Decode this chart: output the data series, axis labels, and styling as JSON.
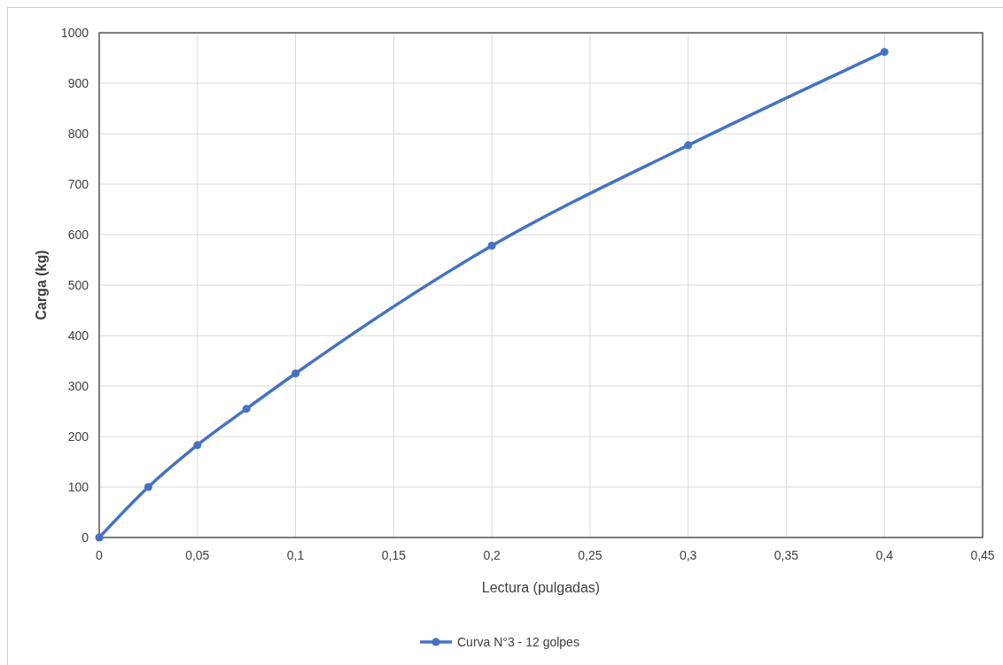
{
  "chart_data": {
    "type": "line",
    "xlabel": "Lectura (pulgadas)",
    "ylabel": "Carga (kg)",
    "x": [
      0,
      0.025,
      0.05,
      0.075,
      0.1,
      0.2,
      0.3,
      0.4
    ],
    "series": [
      {
        "name": "Curva N°3 - 12 golpes",
        "color": "#4472c4",
        "values": [
          0,
          100,
          183,
          255,
          325,
          578,
          777,
          962
        ]
      }
    ],
    "xlim": [
      0,
      0.45
    ],
    "ylim": [
      0,
      1000
    ],
    "xticks": [
      0,
      {
        "value": 0.05,
        "label": "0,05"
      },
      {
        "value": 0.1,
        "label": "0,1"
      },
      {
        "value": 0.15,
        "label": "0,15"
      },
      {
        "value": 0.2,
        "label": "0,2"
      },
      {
        "value": 0.25,
        "label": "0,25"
      },
      {
        "value": 0.3,
        "label": "0,3"
      },
      {
        "value": 0.35,
        "label": "0,35"
      },
      {
        "value": 0.4,
        "label": "0,4"
      },
      {
        "value": 0.45,
        "label": "0,45"
      }
    ],
    "yticks": [
      0,
      100,
      200,
      300,
      400,
      500,
      600,
      700,
      800,
      900,
      1000
    ],
    "grid": true,
    "legend": "bottom",
    "marker": "circle",
    "line_style": "solid"
  }
}
